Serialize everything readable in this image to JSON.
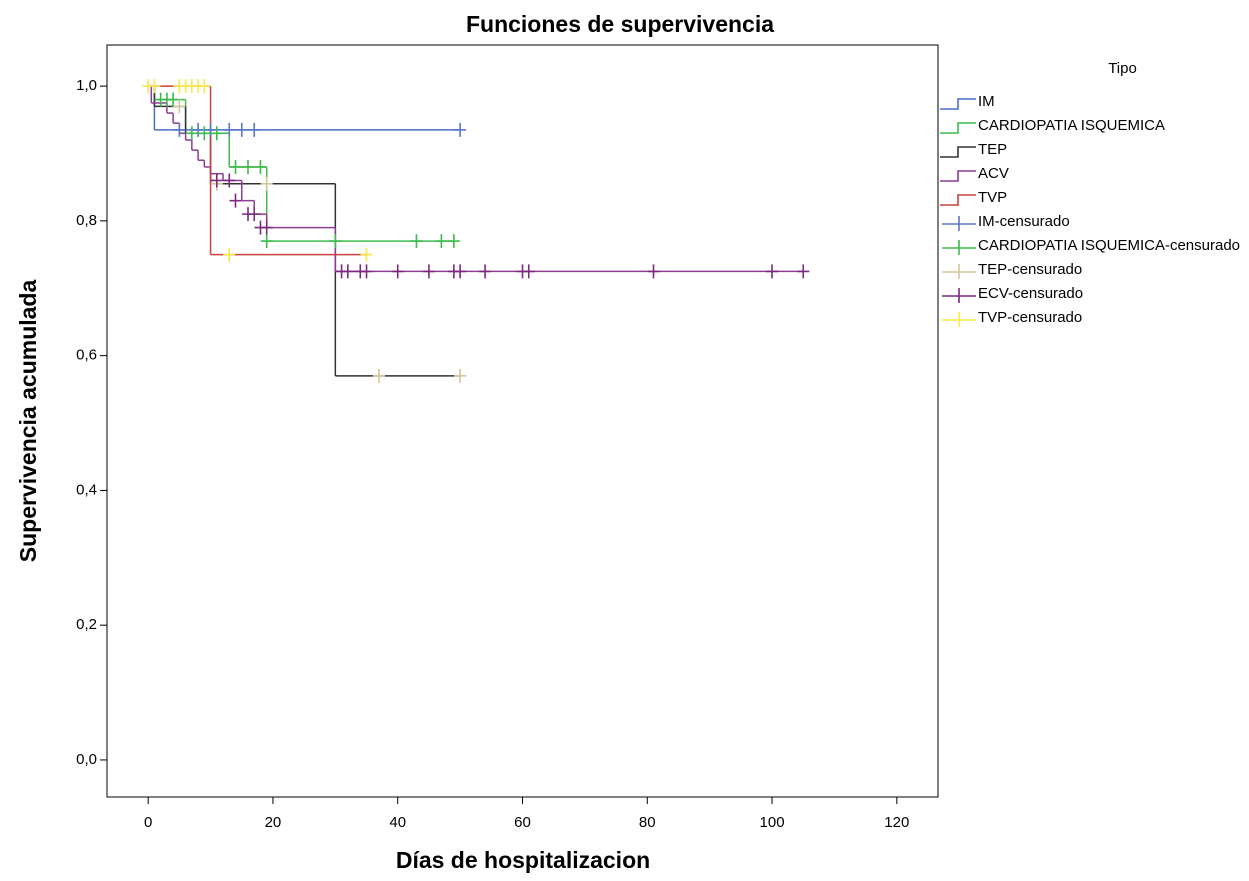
{
  "chart_data": {
    "type": "step",
    "title": "Funciones de supervivencia",
    "x_label": "Días de hospitalizacion",
    "y_label": "Supervivencia acumulada",
    "xlim": [
      -6.6,
      126.6
    ],
    "ylim": [
      -0.055,
      1.061
    ],
    "xticks": [
      0,
      20,
      40,
      60,
      80,
      100,
      120
    ],
    "yticks": [
      {
        "value": 0,
        "label": "0,0"
      },
      {
        "value": 0.2,
        "label": "0,2"
      },
      {
        "value": 0.4,
        "label": "0,4"
      },
      {
        "value": 0.6,
        "label": "0,6"
      },
      {
        "value": 0.8,
        "label": "0,8"
      },
      {
        "value": 1,
        "label": "1,0"
      }
    ],
    "legend_title": "Tipo",
    "series": [
      {
        "name": "IM",
        "style": "step",
        "color": "#4a6dc6",
        "x": [
          0,
          1,
          50
        ],
        "values": [
          1,
          0.935,
          0.935
        ]
      },
      {
        "name": "CARDIOPATIA ISQUEMICA",
        "style": "step",
        "color": "#3dbb4c",
        "x": [
          0,
          1,
          6,
          13,
          19,
          49
        ],
        "values": [
          1,
          0.98,
          0.93,
          0.88,
          0.77,
          0.77
        ]
      },
      {
        "name": "TEP",
        "style": "step",
        "color": "#333333",
        "x": [
          0,
          1,
          6,
          10,
          30,
          50
        ],
        "values": [
          1,
          0.97,
          0.93,
          0.855,
          0.57,
          0.57
        ]
      },
      {
        "name": "ACV",
        "style": "step",
        "color": "#8e3c96",
        "x": [
          0,
          0.5,
          3,
          4,
          5,
          6,
          7,
          8,
          9,
          10,
          12,
          15,
          17,
          19,
          30,
          105
        ],
        "values": [
          1,
          0.975,
          0.96,
          0.945,
          0.93,
          0.92,
          0.905,
          0.89,
          0.88,
          0.87,
          0.86,
          0.83,
          0.81,
          0.79,
          0.725,
          0.725
        ]
      },
      {
        "name": "TVP",
        "style": "step",
        "color": "#c9403f",
        "x": [
          0,
          10,
          35
        ],
        "values": [
          1,
          0.75,
          0.75
        ]
      },
      {
        "name": "IM-censurado",
        "style": "censored",
        "color": "#5a78c8",
        "x": [
          5,
          8,
          10,
          13,
          15,
          17,
          50
        ],
        "values": [
          0.935,
          0.935,
          0.935,
          0.935,
          0.935,
          0.935,
          0.935
        ]
      },
      {
        "name": "CARDIOPATIA ISQUEMICA-censurado",
        "style": "censored",
        "color": "#3dbb4c",
        "x": [
          2,
          3,
          4,
          7,
          9,
          11,
          14,
          16,
          18,
          19,
          30,
          43,
          47,
          49
        ],
        "values": [
          0.98,
          0.98,
          0.98,
          0.93,
          0.93,
          0.93,
          0.88,
          0.88,
          0.88,
          0.77,
          0.77,
          0.77,
          0.77,
          0.77
        ]
      },
      {
        "name": "TEP-censurado",
        "style": "censored",
        "color": "#d2c79b",
        "x": [
          5,
          11,
          19,
          37,
          50
        ],
        "values": [
          0.97,
          0.855,
          0.855,
          0.57,
          0.57
        ]
      },
      {
        "name": "ECV-censurado",
        "style": "censored",
        "color": "#7b2a7e",
        "x": [
          11,
          13,
          14,
          16,
          17,
          18,
          19,
          31,
          32,
          34,
          35,
          40,
          45,
          49,
          50,
          54,
          60,
          61,
          81,
          100,
          105
        ],
        "values": [
          0.86,
          0.86,
          0.83,
          0.81,
          0.81,
          0.79,
          0.79,
          0.725,
          0.725,
          0.725,
          0.725,
          0.725,
          0.725,
          0.725,
          0.725,
          0.725,
          0.725,
          0.725,
          0.725,
          0.725,
          0.725
        ]
      },
      {
        "name": "TVP-censurado",
        "style": "censored",
        "color": "#f8e94a",
        "x": [
          0,
          1,
          5,
          6,
          7,
          8,
          9,
          13,
          35
        ],
        "values": [
          1,
          1,
          1,
          1,
          1,
          1,
          1,
          0.75,
          0.75
        ]
      }
    ]
  }
}
